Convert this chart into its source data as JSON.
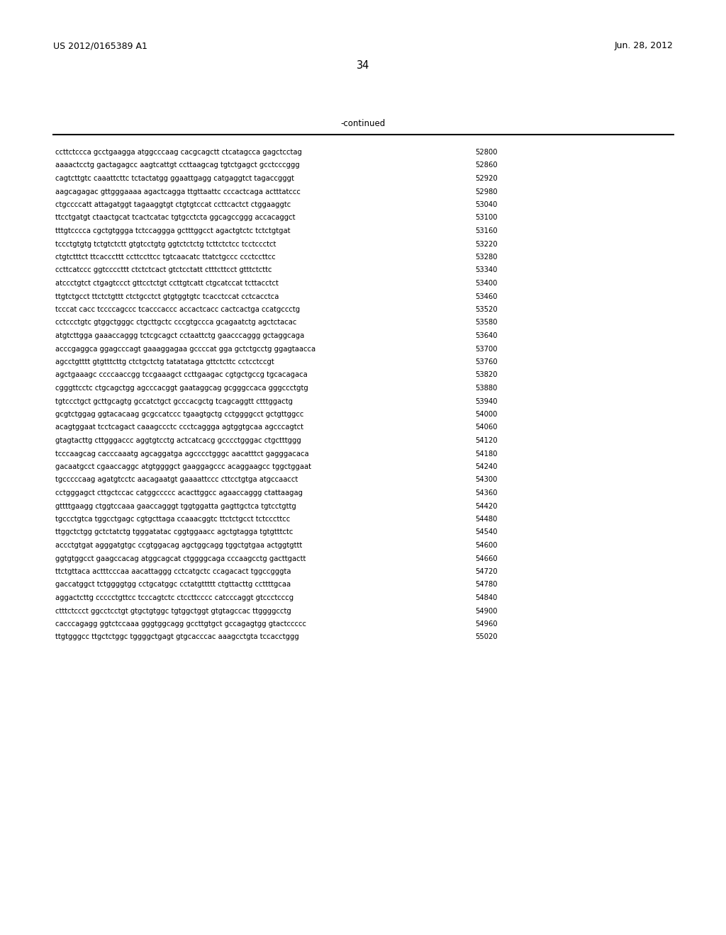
{
  "header_left": "US 2012/0165389 A1",
  "header_right": "Jun. 28, 2012",
  "page_number": "34",
  "continued_label": "-continued",
  "background_color": "#ffffff",
  "text_color": "#000000",
  "seq_font_size": 7.2,
  "header_font_size": 9.0,
  "page_num_font_size": 10.5,
  "continued_font_size": 8.5,
  "sequence_lines": [
    [
      "ccttctccca gcctgaagga atggcccaag cacgcagctt ctcatagcca gagctcctag",
      "52800"
    ],
    [
      "aaaactcctg gactagagcc aagtcattgt ccttaagcag tgtctgagct gcctcccggg",
      "52860"
    ],
    [
      "cagtcttgtc caaattcttc tctactatgg ggaattgagg catgaggtct tagaccgggt",
      "52920"
    ],
    [
      "aagcagagac gttgggaaaa agactcagga ttgttaattc cccactcaga actttatccc",
      "52980"
    ],
    [
      "ctgccccatt attagatggt tagaaggtgt ctgtgtccat ccttcactct ctggaaggtc",
      "53040"
    ],
    [
      "ttcctgatgt ctaactgcat tcactcatac tgtgcctcta ggcagccggg accacaggct",
      "53100"
    ],
    [
      "tttgtcccca cgctgtggga tctccaggga gctttggcct agactgtctc tctctgtgat",
      "53160"
    ],
    [
      "tccctgtgtg tctgtctctt gtgtcctgtg ggtctctctg tcttctctcc tcctccctct",
      "53220"
    ],
    [
      "ctgtctttct ttcacccttt ccttccttcc tgtcaacatc ttatctgccc ccctccttcc",
      "53280"
    ],
    [
      "ccttcatccc ggtccccttt ctctctcact gtctcctatt ctttcttcct gtttctcttc",
      "53340"
    ],
    [
      "atccctgtct ctgagtccct gttcctctgt ccttgtcatt ctgcatccat tcttacctct",
      "53400"
    ],
    [
      "ttgtctgcct ttctctgttt ctctgcctct gtgtggtgtc tcacctccat cctcacctca",
      "53460"
    ],
    [
      "tcccat cacc tccccagccc tcacccaccc accactcacc cactcactga ccatgccctg",
      "53520"
    ],
    [
      "cctccctgtc gtggctgggc ctgcttgctc cccgtgccca gcagaatctg agctctacac",
      "53580"
    ],
    [
      "atgtcttgga gaaaccaggg tctcgcagct cctaattctg gaacccaggg gctaggcaga",
      "53640"
    ],
    [
      "acccgaggca ggagcccagt gaaaggagaa gccccat gga gctctgcctg ggagtaacca",
      "53700"
    ],
    [
      "agcctgtttt gtgtttcttg ctctgctctg tatatataga gttctcttc cctcctccgt",
      "53760"
    ],
    [
      "agctgaaagc ccccaaccgg tccgaaagct ccttgaagac cgtgctgccg tgcacagaca",
      "53820"
    ],
    [
      "cgggttcctc ctgcagctgg agcccacggt gaataggcag gcgggccaca gggccctgtg",
      "53880"
    ],
    [
      "tgtccctgct gcttgcagtg gccatctgct gcccacgctg tcagcaggtt ctttggactg",
      "53940"
    ],
    [
      "gcgtctggag ggtacacaag gcgccatccc tgaagtgctg cctggggcct gctgttggcc",
      "54000"
    ],
    [
      "acagtggaat tcctcagact caaagccctc ccctcaggga agtggtgcaa agcccagtct",
      "54060"
    ],
    [
      "gtagtacttg cttgggaccc aggtgtcctg actcatcacg gcccctgggac ctgctttggg",
      "54120"
    ],
    [
      "tcccaagcag cacccaaatg agcaggatga agcccctgggc aacatttct gagggacaca",
      "54180"
    ],
    [
      "gacaatgcct cgaaccaggc atgtggggct gaaggagccc acaggaagcc tggctggaat",
      "54240"
    ],
    [
      "tgcccccaag agatgtcctc aacagaatgt gaaaattccc cttcctgtga atgccaacct",
      "54300"
    ],
    [
      "cctgggagct cttgctccac catggccccc acacttggcc agaaccaggg ctattaagag",
      "54360"
    ],
    [
      "gttttgaagg ctggtccaaa gaaccagggt tggtggatta gagttgctca tgtcctgttg",
      "54420"
    ],
    [
      "tgccctgtca tggcctgagc cgtgcttaga ccaaacggtc ttctctgcct tctcccttcc",
      "54480"
    ],
    [
      "ttggctctgg gctctatctg tgggatatac cggtggaacc agctgtagga tgtgtttctc",
      "54540"
    ],
    [
      "accctgtgat agggatgtgc ccgtggacag agctggcagg tggctgtgaa actggtgttt",
      "54600"
    ],
    [
      "ggtgtggcct gaagccacag atggcagcat ctggggcaga cccaagcctg gacttgactt",
      "54660"
    ],
    [
      "ttctgttaca actttcccaa aacattaggg cctcatgctc ccagacact tggccgggta",
      "54720"
    ],
    [
      "gaccatggct tctggggtgg cctgcatggc cctatgttttt ctgttacttg ccttttgcaa",
      "54780"
    ],
    [
      "aggactcttg ccccctgttcc tcccagtctc ctccttcccc catcccaggt gtccctcccg",
      "54840"
    ],
    [
      "ctttctccct ggcctcctgt gtgctgtggc tgtggctggt gtgtagccac ttggggcctg",
      "54900"
    ],
    [
      "cacccagagg ggtctccaaa gggtggcagg gccttgtgct gccagagtgg gtactccccc",
      "54960"
    ],
    [
      "ttgtgggcc ttgctctggc tggggctgagt gtgcacccac aaagcctgta tccacctggg",
      "55020"
    ]
  ]
}
